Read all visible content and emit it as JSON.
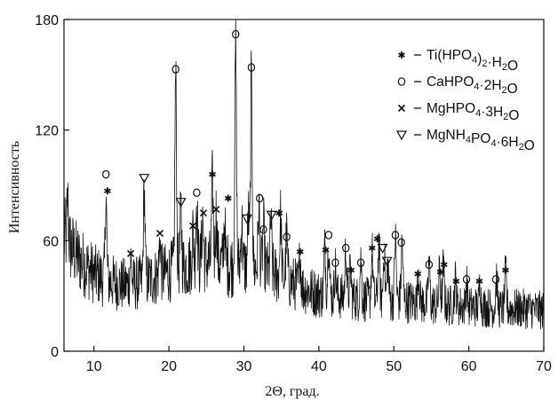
{
  "chart_data": {
    "type": "line",
    "title": "",
    "xlabel": "2Θ, град.",
    "ylabel": "Интенсивность",
    "xlim": [
      6,
      70
    ],
    "ylim": [
      0,
      180
    ],
    "x_ticks": [
      10,
      20,
      30,
      40,
      50,
      60,
      70
    ],
    "y_ticks": [
      0,
      60,
      120,
      180
    ],
    "grid": false,
    "legend_position": "top-right",
    "legend": [
      {
        "symbol": "*",
        "label_main": "Ti(HPO",
        "label_sub": "4",
        "label_rest": ")",
        "label_sub2": "2",
        "label_tail": "·H",
        "label_sub3": "2",
        "label_end": "O"
      },
      {
        "symbol": "○",
        "label_main": "CaHPO",
        "label_sub": "4",
        "label_rest": "·2H",
        "label_sub2": "2",
        "label_tail": "O",
        "label_sub3": "",
        "label_end": ""
      },
      {
        "symbol": "×",
        "label_main": "MgHPO",
        "label_sub": "4",
        "label_rest": "·3H",
        "label_sub2": "2",
        "label_tail": "O",
        "label_sub3": "",
        "label_end": ""
      },
      {
        "symbol": "▽",
        "label_main": "MgNH",
        "label_sub": "4",
        "label_rest": "PO",
        "label_sub2": "4",
        "label_tail": "·6H",
        "label_sub3": "2",
        "label_end": "O"
      }
    ],
    "background": [
      [
        6,
        62
      ],
      [
        8,
        50
      ],
      [
        10,
        42
      ],
      [
        12,
        38
      ],
      [
        14,
        36
      ],
      [
        16,
        37
      ],
      [
        18,
        40
      ],
      [
        20,
        43
      ],
      [
        22,
        46
      ],
      [
        24,
        48
      ],
      [
        26,
        48
      ],
      [
        28,
        47
      ],
      [
        30,
        46
      ],
      [
        32,
        45
      ],
      [
        34,
        42
      ],
      [
        36,
        38
      ],
      [
        38,
        34
      ],
      [
        40,
        31
      ],
      [
        42,
        30
      ],
      [
        44,
        29
      ],
      [
        46,
        28
      ],
      [
        48,
        28
      ],
      [
        50,
        28
      ],
      [
        52,
        27
      ],
      [
        54,
        26
      ],
      [
        56,
        25
      ],
      [
        58,
        25
      ],
      [
        60,
        24
      ],
      [
        62,
        24
      ],
      [
        64,
        23
      ],
      [
        66,
        23
      ],
      [
        68,
        23
      ],
      [
        70,
        22
      ]
    ],
    "peaks": [
      {
        "x": 6.5,
        "y": 80
      },
      {
        "x": 11.6,
        "y": 84
      },
      {
        "x": 14.9,
        "y": 50
      },
      {
        "x": 16.7,
        "y": 88
      },
      {
        "x": 18.8,
        "y": 61
      },
      {
        "x": 20.9,
        "y": 150
      },
      {
        "x": 21.6,
        "y": 76
      },
      {
        "x": 23.2,
        "y": 65
      },
      {
        "x": 23.7,
        "y": 82
      },
      {
        "x": 24.5,
        "y": 73
      },
      {
        "x": 25.8,
        "y": 92
      },
      {
        "x": 26.3,
        "y": 75
      },
      {
        "x": 27.4,
        "y": 70
      },
      {
        "x": 28.9,
        "y": 166
      },
      {
        "x": 29.7,
        "y": 70
      },
      {
        "x": 30.6,
        "y": 74
      },
      {
        "x": 31.0,
        "y": 148
      },
      {
        "x": 32.0,
        "y": 78
      },
      {
        "x": 32.6,
        "y": 68
      },
      {
        "x": 33.6,
        "y": 70
      },
      {
        "x": 34.9,
        "y": 74
      },
      {
        "x": 35.7,
        "y": 63
      },
      {
        "x": 37.5,
        "y": 52
      },
      {
        "x": 40.8,
        "y": 56
      },
      {
        "x": 41.3,
        "y": 62
      },
      {
        "x": 42.2,
        "y": 46
      },
      {
        "x": 43.6,
        "y": 57
      },
      {
        "x": 44.2,
        "y": 45
      },
      {
        "x": 45.6,
        "y": 50
      },
      {
        "x": 47.1,
        "y": 54
      },
      {
        "x": 48.0,
        "y": 58
      },
      {
        "x": 48.7,
        "y": 55
      },
      {
        "x": 49.2,
        "y": 48
      },
      {
        "x": 50.2,
        "y": 62
      },
      {
        "x": 51.1,
        "y": 60
      },
      {
        "x": 53.3,
        "y": 44
      },
      {
        "x": 54.7,
        "y": 48
      },
      {
        "x": 56.1,
        "y": 44
      },
      {
        "x": 56.6,
        "y": 46
      },
      {
        "x": 58.2,
        "y": 39
      },
      {
        "x": 59.7,
        "y": 38
      },
      {
        "x": 61.5,
        "y": 37
      },
      {
        "x": 63.7,
        "y": 40
      },
      {
        "x": 64.9,
        "y": 43
      }
    ],
    "phase_markers": [
      {
        "x": 11.6,
        "y": 96,
        "symbol": "○"
      },
      {
        "x": 11.8,
        "y": 87,
        "symbol": "*"
      },
      {
        "x": 14.9,
        "y": 53,
        "symbol": "×"
      },
      {
        "x": 16.7,
        "y": 94,
        "symbol": "▽"
      },
      {
        "x": 18.8,
        "y": 64,
        "symbol": "×"
      },
      {
        "x": 20.9,
        "y": 153,
        "symbol": "○"
      },
      {
        "x": 21.6,
        "y": 81,
        "symbol": "▽"
      },
      {
        "x": 23.2,
        "y": 68,
        "symbol": "×"
      },
      {
        "x": 23.7,
        "y": 86,
        "symbol": "○"
      },
      {
        "x": 24.6,
        "y": 75,
        "symbol": "×"
      },
      {
        "x": 25.8,
        "y": 96,
        "symbol": "*"
      },
      {
        "x": 26.3,
        "y": 77,
        "symbol": "×"
      },
      {
        "x": 27.9,
        "y": 83,
        "symbol": "*"
      },
      {
        "x": 28.9,
        "y": 172,
        "symbol": "○"
      },
      {
        "x": 30.4,
        "y": 72,
        "symbol": "▽"
      },
      {
        "x": 31.0,
        "y": 154,
        "symbol": "○"
      },
      {
        "x": 32.1,
        "y": 83,
        "symbol": "○"
      },
      {
        "x": 32.6,
        "y": 66,
        "symbol": "○"
      },
      {
        "x": 33.7,
        "y": 74,
        "symbol": "▽"
      },
      {
        "x": 34.7,
        "y": 75,
        "symbol": "*"
      },
      {
        "x": 35.7,
        "y": 62,
        "symbol": "○"
      },
      {
        "x": 37.5,
        "y": 54,
        "symbol": "*"
      },
      {
        "x": 40.9,
        "y": 55,
        "symbol": "*"
      },
      {
        "x": 41.3,
        "y": 63,
        "symbol": "○"
      },
      {
        "x": 42.2,
        "y": 48,
        "symbol": "○"
      },
      {
        "x": 43.6,
        "y": 56,
        "symbol": "○"
      },
      {
        "x": 44.3,
        "y": 44,
        "symbol": "*"
      },
      {
        "x": 45.6,
        "y": 48,
        "symbol": "○"
      },
      {
        "x": 47.1,
        "y": 56,
        "symbol": "*"
      },
      {
        "x": 47.8,
        "y": 61,
        "symbol": "*"
      },
      {
        "x": 48.5,
        "y": 56,
        "symbol": "▽"
      },
      {
        "x": 49.1,
        "y": 49,
        "symbol": "▽"
      },
      {
        "x": 50.2,
        "y": 63,
        "symbol": "○"
      },
      {
        "x": 51.0,
        "y": 59,
        "symbol": "○"
      },
      {
        "x": 53.2,
        "y": 42,
        "symbol": "*"
      },
      {
        "x": 54.7,
        "y": 47,
        "symbol": "○"
      },
      {
        "x": 56.2,
        "y": 43,
        "symbol": "*"
      },
      {
        "x": 56.7,
        "y": 47,
        "symbol": "*"
      },
      {
        "x": 58.3,
        "y": 38,
        "symbol": "*"
      },
      {
        "x": 59.7,
        "y": 39,
        "symbol": "○"
      },
      {
        "x": 61.4,
        "y": 38,
        "symbol": "*"
      },
      {
        "x": 63.6,
        "y": 39,
        "symbol": "○"
      },
      {
        "x": 64.9,
        "y": 44,
        "symbol": "*"
      }
    ]
  }
}
